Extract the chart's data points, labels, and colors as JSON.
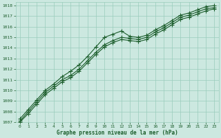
{
  "xlabel": "Graphe pression niveau de la mer (hPa)",
  "x_ticks": [
    0,
    1,
    2,
    3,
    4,
    5,
    6,
    7,
    8,
    9,
    10,
    11,
    12,
    13,
    14,
    15,
    16,
    17,
    18,
    19,
    20,
    21,
    22,
    23
  ],
  "xlim": [
    -0.5,
    23.5
  ],
  "ylim": [
    1007,
    1018.3
  ],
  "y_ticks": [
    1007,
    1008,
    1009,
    1010,
    1011,
    1012,
    1013,
    1014,
    1015,
    1016,
    1017,
    1018
  ],
  "bg_color": "#cce8e0",
  "grid_color": "#99ccbb",
  "line_color": "#1a5c2a",
  "series1": [
    1007.3,
    1008.2,
    1009.1,
    1010.0,
    1010.6,
    1011.3,
    1011.8,
    1012.4,
    1013.2,
    1014.1,
    1015.0,
    1015.3,
    1015.6,
    1015.1,
    1015.0,
    1015.2,
    1015.7,
    1016.1,
    1016.6,
    1017.1,
    1017.3,
    1017.6,
    1017.9,
    1018.0
  ],
  "series2": [
    1007.1,
    1008.0,
    1008.9,
    1009.8,
    1010.4,
    1011.0,
    1011.4,
    1012.0,
    1012.8,
    1013.6,
    1014.3,
    1014.7,
    1015.0,
    1014.9,
    1014.8,
    1015.0,
    1015.5,
    1015.9,
    1016.4,
    1016.9,
    1017.1,
    1017.4,
    1017.7,
    1017.8
  ],
  "series3": [
    1007.0,
    1007.8,
    1008.7,
    1009.6,
    1010.2,
    1010.8,
    1011.2,
    1011.8,
    1012.6,
    1013.4,
    1014.1,
    1014.5,
    1014.8,
    1014.7,
    1014.6,
    1014.8,
    1015.3,
    1015.7,
    1016.2,
    1016.7,
    1016.9,
    1017.2,
    1017.5,
    1017.7
  ]
}
